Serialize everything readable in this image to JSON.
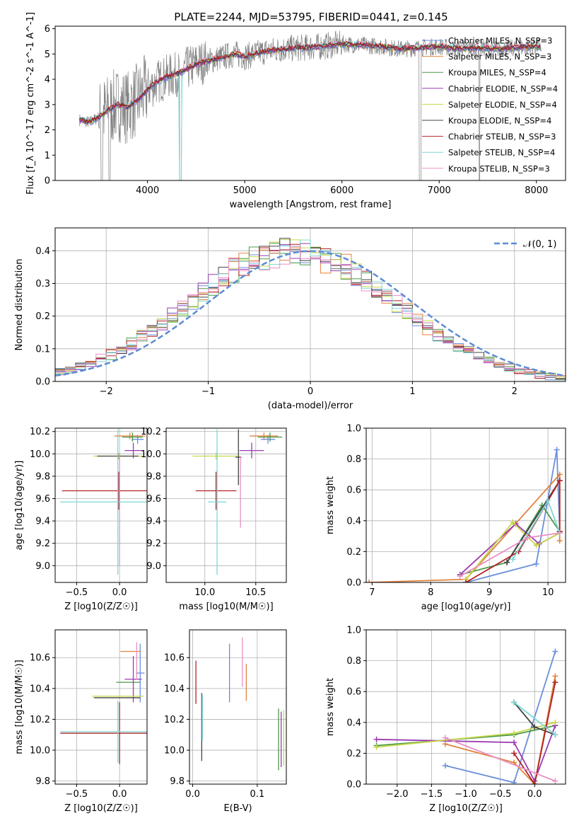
{
  "figure": {
    "title": "PLATE=2244, MJD=53795, FIBERID=0441, z=0.145"
  },
  "colors": {
    "palette": [
      "#6a8fdb",
      "#e0823d",
      "#4a9a4a",
      "#9b3ab2",
      "#c9d64a",
      "#444444",
      "#b22222",
      "#7fd6d6",
      "#e98fc5"
    ],
    "data_spectrum": "#808080",
    "normal_curve": "#5b8bd6"
  },
  "chart_data": [
    {
      "type": "line",
      "id": "spectrum",
      "xlabel": "wavelength [Angstrom, rest frame]",
      "ylabel": "Flux [f_λ 10^-17 erg cm^-2 s^-1 A^-1]",
      "xlim": [
        3050,
        8300
      ],
      "ylim": [
        0,
        6.1
      ],
      "xticks": [
        "4000",
        "5000",
        "6000",
        "7000",
        "8000"
      ],
      "yticks": [
        "0",
        "1",
        "2",
        "3",
        "4",
        "5",
        "6"
      ],
      "grid": false,
      "legend_position": "right",
      "model_curve": {
        "x": [
          3300,
          3400,
          3500,
          3600,
          3700,
          3800,
          3900,
          4000,
          4100,
          4200,
          4300,
          4400,
          4500,
          4600,
          4700,
          4800,
          4900,
          5000,
          5200,
          5400,
          5600,
          5800,
          6000,
          6200,
          6400,
          6600,
          6800,
          7000,
          7200,
          7400,
          7600,
          7800,
          8000
        ],
        "y": [
          2.4,
          2.3,
          2.5,
          2.8,
          3.0,
          2.9,
          3.2,
          3.6,
          3.9,
          4.1,
          4.2,
          4.4,
          4.6,
          4.7,
          4.8,
          4.9,
          5.0,
          4.9,
          5.1,
          5.2,
          5.25,
          5.3,
          5.4,
          5.35,
          5.3,
          5.2,
          5.25,
          5.3,
          5.2,
          5.25,
          5.2,
          5.25,
          5.3
        ]
      },
      "series": [
        {
          "name": "Chabrier MILES, N_SSP=3"
        },
        {
          "name": "Salpeter MILES, N_SSP=3"
        },
        {
          "name": "Kroupa MILES, N_SSP=4"
        },
        {
          "name": "Chabrier ELODIE, N_SSP=4"
        },
        {
          "name": "Salpeter ELODIE, N_SSP=4"
        },
        {
          "name": "Kroupa ELODIE, N_SSP=4"
        },
        {
          "name": "Chabrier STELIB, N_SSP=3"
        },
        {
          "name": "Salpeter STELIB, N_SSP=4"
        },
        {
          "name": "Kroupa STELIB, N_SSP=3"
        }
      ]
    },
    {
      "type": "line",
      "id": "residual-histogram",
      "xlabel": "(data-model)/error",
      "ylabel": "Normed distribution",
      "xlim": [
        -2.5,
        2.5
      ],
      "ylim": [
        0,
        0.47
      ],
      "xticks": [
        "−2",
        "−1",
        "0",
        "1",
        "2"
      ],
      "yticks": [
        "0.0",
        "0.1",
        "0.2",
        "0.3",
        "0.4"
      ],
      "grid": true,
      "legend_position": "top-right",
      "legend": [
        "𝒩(0, 1)"
      ],
      "bin_width": 0.1
    },
    {
      "type": "scatter",
      "id": "age-vs-metallicity",
      "xlabel": "Z [log10(Z/Z☉)]",
      "ylabel": "age [log10(age/yr)]",
      "xlim": [
        -0.75,
        0.32
      ],
      "ylim": [
        8.85,
        10.23
      ],
      "xticks": [
        "−0.5",
        "0.0"
      ],
      "yticks": [
        "9.0",
        "9.2",
        "9.4",
        "9.6",
        "9.8",
        "10.0",
        "10.2"
      ],
      "grid": true,
      "points": [
        {
          "x": 0.21,
          "y": 10.13,
          "xerr": 0.07,
          "yerr": 0.04
        },
        {
          "x": 0.12,
          "y": 10.16,
          "xerr": 0.18,
          "yerr": 0.03
        },
        {
          "x": 0.15,
          "y": 10.15,
          "xerr": 0.12,
          "yerr": 0.04
        },
        {
          "x": 0.16,
          "y": 10.03,
          "xerr": 0.1,
          "yerr": 0.07
        },
        {
          "x": -0.01,
          "y": 9.98,
          "xerr": 0.29,
          "yerr": 0.03
        },
        {
          "x": -0.02,
          "y": 9.98,
          "xerr": 0.24,
          "yerr": 0.03
        },
        {
          "x": -0.01,
          "y": 9.67,
          "xerr": 0.66,
          "yerr": 0.17
        },
        {
          "x": -0.02,
          "y": 9.57,
          "xerr": 0.67,
          "yerr": 0.65
        },
        {
          "x": 0.0,
          "y": 9.5,
          "xerr": 0.0,
          "yerr": 0.5
        }
      ]
    },
    {
      "type": "scatter",
      "id": "age-vs-mass",
      "xlabel": "mass [log10(M/M☉)]",
      "ylabel": "",
      "xlim": [
        9.62,
        10.8
      ],
      "ylim": [
        8.85,
        10.23
      ],
      "xticks": [
        "10.0",
        "10.5"
      ],
      "yticks": [
        "9.0",
        "9.2",
        "9.4",
        "9.6",
        "9.8",
        "10.0",
        "10.2"
      ],
      "grid": true,
      "points": [
        {
          "x": 10.62,
          "y": 10.13,
          "xerr": 0.07,
          "yerr": 0.04
        },
        {
          "x": 10.58,
          "y": 10.16,
          "xerr": 0.14,
          "yerr": 0.03
        },
        {
          "x": 10.64,
          "y": 10.15,
          "xerr": 0.12,
          "yerr": 0.04
        },
        {
          "x": 10.46,
          "y": 10.03,
          "xerr": 0.12,
          "yerr": 0.07
        },
        {
          "x": 10.11,
          "y": 9.98,
          "xerr": 0.23,
          "yerr": 0.03
        },
        {
          "x": 10.33,
          "y": 9.97,
          "xerr": 0.03,
          "yerr": 0.25
        },
        {
          "x": 10.11,
          "y": 9.67,
          "xerr": 0.2,
          "yerr": 0.17
        },
        {
          "x": 10.12,
          "y": 9.57,
          "xerr": 0.09,
          "yerr": 0.65
        },
        {
          "x": 10.35,
          "y": 9.66,
          "xerr": 0.0,
          "yerr": 0.32
        }
      ]
    },
    {
      "type": "line",
      "id": "mass-weight-vs-age",
      "xlabel": "age [log10(age/yr)]",
      "ylabel": "mass weight",
      "xlim": [
        6.9,
        10.3
      ],
      "ylim": [
        0,
        1.0
      ],
      "xticks": [
        "7",
        "8",
        "9",
        "10"
      ],
      "yticks": [
        "0.0",
        "0.2",
        "0.4",
        "0.6",
        "0.8",
        "1.0"
      ],
      "grid": true,
      "series": [
        {
          "x": [
            8.6,
            9.8,
            10.15,
            10.2
          ],
          "y": [
            0.0,
            0.12,
            0.86,
            0.33
          ]
        },
        {
          "x": [
            6.95,
            8.6,
            10.2,
            10.2
          ],
          "y": [
            0.0,
            0.02,
            0.7,
            0.27
          ]
        },
        {
          "x": [
            8.5,
            9.3,
            9.9,
            10.2
          ],
          "y": [
            0.05,
            0.13,
            0.5,
            0.33
          ]
        },
        {
          "x": [
            8.5,
            9.45,
            9.85,
            10.2
          ],
          "y": [
            0.05,
            0.38,
            0.25,
            0.32
          ]
        },
        {
          "x": [
            8.6,
            9.4,
            9.8,
            10.2
          ],
          "y": [
            0.02,
            0.39,
            0.24,
            0.32
          ]
        },
        {
          "x": [
            9.3,
            10.2
          ],
          "y": [
            0.13,
            0.66
          ]
        },
        {
          "x": [
            8.6,
            9.5,
            10.2,
            10.2
          ],
          "y": [
            0.0,
            0.2,
            0.66,
            0.33
          ]
        },
        {
          "x": [
            9.4,
            10.0,
            10.2
          ],
          "y": [
            0.15,
            0.53,
            0.32
          ]
        },
        {
          "x": [
            8.5,
            9.65,
            10.2
          ],
          "y": [
            0.04,
            0.29,
            0.32
          ]
        }
      ]
    },
    {
      "type": "scatter",
      "id": "mass-vs-metallicity",
      "xlabel": "Z [log10(Z/Z☉)]",
      "ylabel": "mass [log10(M/M☉)]",
      "xlim": [
        -0.75,
        0.32
      ],
      "ylim": [
        9.78,
        10.78
      ],
      "xticks": [
        "−0.5",
        "0.0"
      ],
      "yticks": [
        "9.8",
        "10.0",
        "10.2",
        "10.4",
        "10.6"
      ],
      "grid": true,
      "points": [
        {
          "x": 0.24,
          "y": 10.5,
          "xerr": 0.05,
          "yerr": 0.19
        },
        {
          "x": 0.13,
          "y": 10.64,
          "xerr": 0.12,
          "yerr": 0.0
        },
        {
          "x": 0.1,
          "y": 10.44,
          "xerr": 0.14,
          "yerr": 0.0
        },
        {
          "x": 0.16,
          "y": 10.46,
          "xerr": 0.1,
          "yerr": 0.15
        },
        {
          "x": -0.02,
          "y": 10.35,
          "xerr": 0.3,
          "yerr": 0.0
        },
        {
          "x": -0.03,
          "y": 10.34,
          "xerr": 0.27,
          "yerr": 0.0
        },
        {
          "x": 0.0,
          "y": 10.11,
          "xerr": 0.69,
          "yerr": 0.2
        },
        {
          "x": -0.02,
          "y": 10.12,
          "xerr": 0.67,
          "yerr": 0.2
        },
        {
          "x": 0.2,
          "y": 10.58,
          "xerr": 0.0,
          "yerr": 0.12
        }
      ]
    },
    {
      "type": "scatter",
      "id": "mass-vs-ebv",
      "xlabel": "E(B-V)",
      "ylabel": "",
      "xlim": [
        -0.005,
        0.145
      ],
      "ylim": [
        9.78,
        10.78
      ],
      "xticks": [
        "0.0",
        "0.1"
      ],
      "yticks": [
        "9.8",
        "10.0",
        "10.2",
        "10.4",
        "10.6"
      ],
      "grid": true,
      "points": [
        {
          "x": 0.057,
          "y": 10.5,
          "xerr": 0.0,
          "yerr": 0.19
        },
        {
          "x": 0.083,
          "y": 10.44,
          "xerr": 0.0,
          "yerr": 0.12
        },
        {
          "x": 0.133,
          "y": 10.07,
          "xerr": 0.0,
          "yerr": 0.2
        },
        {
          "x": 0.137,
          "y": 10.07,
          "xerr": 0.0,
          "yerr": 0.18
        },
        {
          "x": 0.141,
          "y": 10.08,
          "xerr": 0.0,
          "yerr": 0.18
        },
        {
          "x": 0.014,
          "y": 10.15,
          "xerr": 0.0,
          "yerr": 0.22
        },
        {
          "x": 0.005,
          "y": 10.44,
          "xerr": 0.0,
          "yerr": 0.14
        },
        {
          "x": 0.015,
          "y": 10.21,
          "xerr": 0.0,
          "yerr": 0.15
        },
        {
          "x": 0.077,
          "y": 10.57,
          "xerr": 0.0,
          "yerr": 0.16
        }
      ]
    },
    {
      "type": "line",
      "id": "mass-weight-vs-metallicity",
      "xlabel": "Z [log10(Z/Z☉)]",
      "ylabel": "mass weight",
      "xlim": [
        -2.45,
        0.45
      ],
      "ylim": [
        0,
        1.0
      ],
      "xticks": [
        "−2.0",
        "−1.5",
        "−1.0",
        "−0.5",
        "0.0"
      ],
      "yticks": [
        "0.0",
        "0.2",
        "0.4",
        "0.6",
        "0.8",
        "1.0"
      ],
      "grid": true,
      "series": [
        {
          "x": [
            -1.3,
            -0.3,
            0.3
          ],
          "y": [
            0.12,
            0.01,
            0.86
          ]
        },
        {
          "x": [
            -1.3,
            -0.3,
            0.0,
            0.3
          ],
          "y": [
            0.26,
            0.14,
            0.0,
            0.7
          ]
        },
        {
          "x": [
            -2.3,
            -0.3,
            0.3
          ],
          "y": [
            0.25,
            0.32,
            0.38
          ]
        },
        {
          "x": [
            -2.3,
            -0.3,
            0.0,
            0.3
          ],
          "y": [
            0.29,
            0.27,
            0.02,
            0.38
          ]
        },
        {
          "x": [
            -2.3,
            -0.3,
            0.3
          ],
          "y": [
            0.24,
            0.33,
            0.4
          ]
        },
        {
          "x": [
            -0.3,
            0.0,
            0.3
          ],
          "y": [
            0.53,
            0.37,
            0.32
          ]
        },
        {
          "x": [
            -0.3,
            0.0,
            0.3
          ],
          "y": [
            0.2,
            0.0,
            0.66
          ]
        },
        {
          "x": [
            -0.3,
            0.3
          ],
          "y": [
            0.53,
            0.32
          ]
        },
        {
          "x": [
            -1.3,
            0.3
          ],
          "y": [
            0.3,
            0.02
          ]
        }
      ]
    }
  ]
}
